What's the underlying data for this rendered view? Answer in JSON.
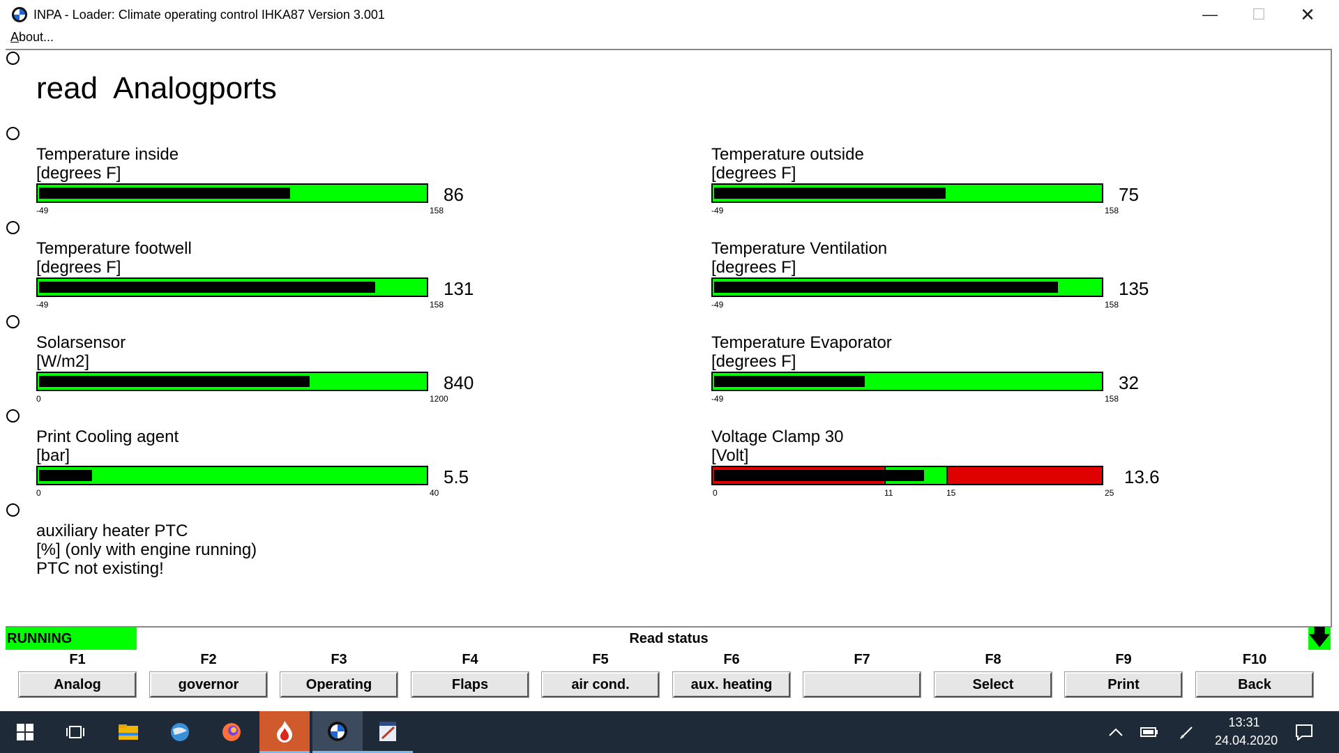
{
  "window": {
    "title": "INPA - Loader:  Climate operating control IHKA87 Version 3.001"
  },
  "menu": {
    "about": "About..."
  },
  "page": {
    "heading": "read  Analogports"
  },
  "gauges": {
    "temp_inside": {
      "title": "Temperature inside",
      "unit": "[degrees F]",
      "value": "86",
      "min": "-49",
      "max": "158",
      "fraction": 0.65
    },
    "temp_outside": {
      "title": "Temperature outside",
      "unit": "[degrees F]",
      "value": "75",
      "min": "-49",
      "max": "158",
      "fraction": 0.6
    },
    "temp_footwell": {
      "title": "Temperature footwell",
      "unit": "[degrees F]",
      "value": "131",
      "min": "-49",
      "max": "158",
      "fraction": 0.87
    },
    "temp_ventilation": {
      "title": "Temperature Ventilation",
      "unit": "[degrees F]",
      "value": "135",
      "min": "-49",
      "max": "158",
      "fraction": 0.89
    },
    "solarsensor": {
      "title": "Solarsensor",
      "unit": "[W/m2]",
      "value": "840",
      "min": "0",
      "max": "1200",
      "fraction": 0.7
    },
    "temp_evaporator": {
      "title": "Temperature Evaporator",
      "unit": "[degrees F]",
      "value": "32",
      "min": "-49",
      "max": "158",
      "fraction": 0.39
    },
    "print_cooling": {
      "title": "Print Cooling agent",
      "unit": "[bar]",
      "value": "5.5",
      "min": "0",
      "max": "40",
      "fraction": 0.137
    },
    "voltage_clamp": {
      "title": "Voltage Clamp 30",
      "unit": "[Volt]",
      "value": "13.6",
      "min": "0",
      "max": "25",
      "mid1": "11",
      "mid2": "15",
      "fraction": 0.544
    }
  },
  "ptc": {
    "title": "auxiliary heater PTC",
    "unit": "[%] (only with engine running)",
    "note": "PTC not existing!"
  },
  "status": {
    "state": "RUNNING",
    "text": "Read status"
  },
  "fkeys": [
    {
      "key": "F1",
      "label": "Analog"
    },
    {
      "key": "F2",
      "label": "governor"
    },
    {
      "key": "F3",
      "label": "Operating"
    },
    {
      "key": "F4",
      "label": "Flaps"
    },
    {
      "key": "F5",
      "label": "air cond."
    },
    {
      "key": "F6",
      "label": "aux. heating"
    },
    {
      "key": "F7",
      "label": ""
    },
    {
      "key": "F8",
      "label": "Select"
    },
    {
      "key": "F9",
      "label": "Print"
    },
    {
      "key": "F10",
      "label": "Back"
    }
  ],
  "taskbar": {
    "icons": [
      "windows-start-icon",
      "task-view-icon",
      "file-explorer-icon",
      "globe-browser-icon",
      "firefox-icon",
      "flame-app-icon",
      "bmw-app-icon",
      "editor-app-icon"
    ],
    "time": "13:31",
    "date": "24.04.2020"
  },
  "colors": {
    "bar_green": "#00ff00",
    "bar_red": "#e00000",
    "bar_fill": "#000000",
    "taskbar": "#1e2a38"
  }
}
